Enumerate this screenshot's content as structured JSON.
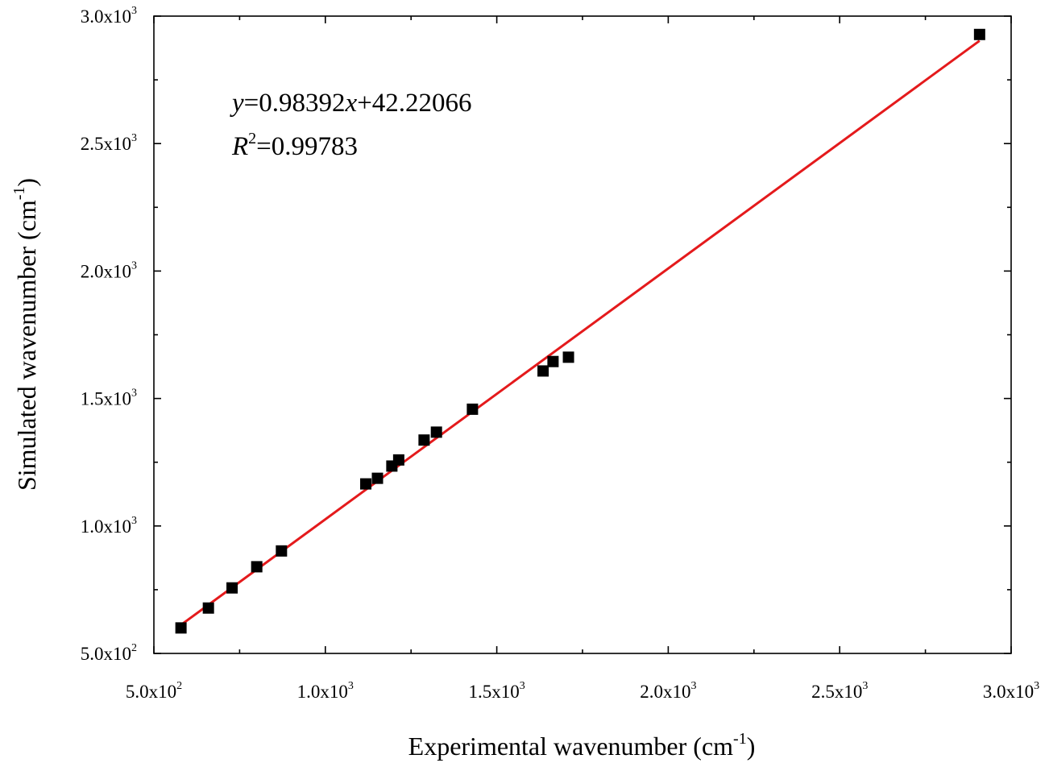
{
  "chart_data": {
    "type": "scatter",
    "xlabel": "Experimental wavenumber (cm",
    "xlabel_sup": "-1",
    "xlabel_tail": ")",
    "ylabel": "Simulated wavenumber (cm",
    "ylabel_sup": "-1",
    "ylabel_tail": ")",
    "xlim": [
      500,
      3000
    ],
    "ylim": [
      500,
      3000
    ],
    "x_ticks": [
      {
        "value": 500,
        "mantissa": "5.0x10",
        "exp": "2"
      },
      {
        "value": 1000,
        "mantissa": "1.0x10",
        "exp": "3"
      },
      {
        "value": 1500,
        "mantissa": "1.5x10",
        "exp": "3"
      },
      {
        "value": 2000,
        "mantissa": "2.0x10",
        "exp": "3"
      },
      {
        "value": 2500,
        "mantissa": "2.5x10",
        "exp": "3"
      },
      {
        "value": 3000,
        "mantissa": "3.0x10",
        "exp": "3"
      }
    ],
    "y_ticks": [
      {
        "value": 500,
        "mantissa": "5.0x10",
        "exp": "2"
      },
      {
        "value": 1000,
        "mantissa": "1.0x10",
        "exp": "3"
      },
      {
        "value": 1500,
        "mantissa": "1.5x10",
        "exp": "3"
      },
      {
        "value": 2000,
        "mantissa": "2.0x10",
        "exp": "3"
      },
      {
        "value": 2500,
        "mantissa": "2.5x10",
        "exp": "3"
      },
      {
        "value": 3000,
        "mantissa": "3.0x10",
        "exp": "3"
      }
    ],
    "points": [
      {
        "x": 579,
        "y": 600
      },
      {
        "x": 659,
        "y": 678
      },
      {
        "x": 728,
        "y": 757
      },
      {
        "x": 800,
        "y": 840
      },
      {
        "x": 872,
        "y": 902
      },
      {
        "x": 1118,
        "y": 1165
      },
      {
        "x": 1152,
        "y": 1187
      },
      {
        "x": 1194,
        "y": 1235
      },
      {
        "x": 1214,
        "y": 1259
      },
      {
        "x": 1288,
        "y": 1337
      },
      {
        "x": 1324,
        "y": 1368
      },
      {
        "x": 1429,
        "y": 1458
      },
      {
        "x": 1635,
        "y": 1608
      },
      {
        "x": 1664,
        "y": 1645
      },
      {
        "x": 1709,
        "y": 1662
      },
      {
        "x": 2908,
        "y": 2928
      }
    ],
    "fit": {
      "slope": 0.98392,
      "intercept": 42.22066,
      "x_start": 579,
      "x_end": 2908,
      "color": "#e41a1c"
    },
    "marker_color": "#000000",
    "grid": false,
    "annotation": {
      "eq_y": "y",
      "eq_mid": "=0.98392",
      "eq_x": "x",
      "eq_tail": "+42.22066",
      "r_letter": "R",
      "r_exp": "2",
      "r_value": "=0.99783"
    }
  }
}
